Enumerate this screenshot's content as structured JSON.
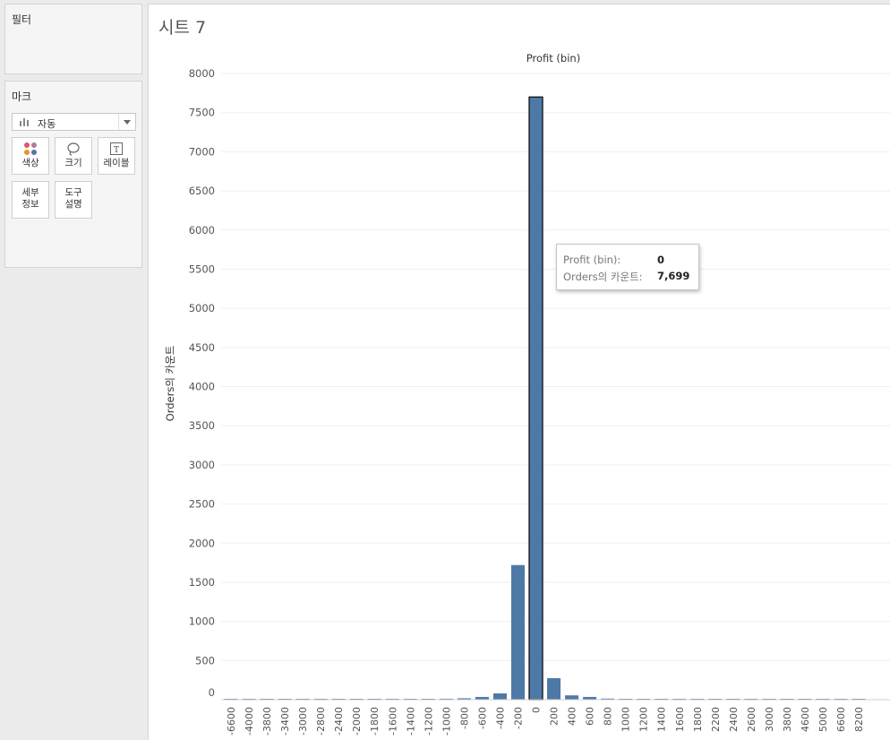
{
  "filters": {
    "title": "필터"
  },
  "marks": {
    "title": "마크",
    "mark_type": "자동",
    "buttons": [
      {
        "label": "색상",
        "icon": "color-dots-icon"
      },
      {
        "label": "크기",
        "icon": "size-lasso-icon"
      },
      {
        "label": "레이블",
        "icon": "text-label-icon"
      },
      {
        "label": "세부\n정보",
        "icon": ""
      },
      {
        "label": "도구\n설명",
        "icon": ""
      }
    ]
  },
  "sheet": {
    "title": "시트 7"
  },
  "chart_data": {
    "type": "bar",
    "title": "Profit (bin)",
    "xlabel": "",
    "ylabel": "Orders의 카운트",
    "ylim": [
      0,
      8000
    ],
    "y_ticks": [
      0,
      500,
      1000,
      1500,
      2000,
      2500,
      3000,
      3500,
      4000,
      4500,
      5000,
      5500,
      6000,
      6500,
      7000,
      7500,
      8000
    ],
    "categories": [
      "-6600",
      "-4000",
      "-3800",
      "-3400",
      "-3000",
      "-2800",
      "-2400",
      "-2000",
      "-1800",
      "-1600",
      "-1400",
      "-1200",
      "-1000",
      "-800",
      "-600",
      "-400",
      "-200",
      "0",
      "200",
      "400",
      "600",
      "800",
      "1000",
      "1200",
      "1400",
      "1600",
      "1800",
      "2200",
      "2400",
      "2600",
      "3000",
      "3800",
      "4600",
      "5000",
      "6600",
      "8200"
    ],
    "values": [
      2,
      1,
      1,
      1,
      1,
      1,
      1,
      1,
      1,
      1,
      3,
      10,
      12,
      18,
      35,
      80,
      1720,
      7699,
      275,
      55,
      35,
      14,
      10,
      8,
      6,
      3,
      2,
      1,
      1,
      1,
      1,
      1,
      1,
      1,
      1,
      1
    ],
    "highlighted": "0",
    "bar_color": "#4e79a7",
    "grid": true
  },
  "tooltip": {
    "row1_key": "Profit (bin):",
    "row1_value": "0",
    "row2_key": "Orders의 카운트:",
    "row2_value": "7,699"
  }
}
